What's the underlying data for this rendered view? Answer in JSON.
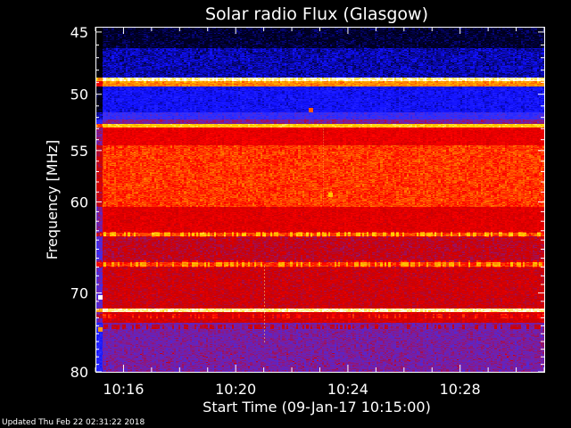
{
  "chart_data": {
    "type": "heatmap",
    "title": "Solar radio Flux (Glasgow)",
    "xlabel": "Start Time (09-Jan-17 10:15:00)",
    "ylabel": "Frequency [MHz]",
    "x_range": [
      "10:15:00",
      "10:31:00"
    ],
    "y_range_MHz": [
      44.6,
      80.0
    ],
    "y_ticks": [
      45,
      50,
      55,
      60,
      70,
      80
    ],
    "y_tick_labels": [
      "45",
      "50",
      "55",
      "60",
      "70",
      "80"
    ],
    "x_tick_labels": [
      "10:16",
      "10:20",
      "10:24",
      "10:28"
    ],
    "x_tick_minutes": [
      16,
      20,
      24,
      28
    ],
    "colormap": [
      "#000000",
      "#00002a",
      "#1010ff",
      "#3030ff",
      "#7a1ea0",
      "#cc0000",
      "#ff0000",
      "#ff8a00",
      "#ffd600",
      "#ffffff"
    ],
    "y_scale": "log",
    "flux_bands": [
      {
        "fmin": 44.6,
        "fmax": 46.2,
        "level": 0.11
      },
      {
        "fmin": 46.2,
        "fmax": 48.6,
        "level": 0.18
      },
      {
        "fmin": 48.6,
        "fmax": 48.9,
        "level": 0.95
      },
      {
        "fmin": 48.9,
        "fmax": 49.3,
        "level": 0.78
      },
      {
        "fmin": 49.3,
        "fmax": 51.5,
        "level": 0.23
      },
      {
        "fmin": 51.5,
        "fmax": 52.2,
        "level": 0.34
      },
      {
        "fmin": 52.2,
        "fmax": 52.6,
        "level": 0.45
      },
      {
        "fmin": 52.6,
        "fmax": 52.9,
        "level": 0.88
      },
      {
        "fmin": 52.9,
        "fmax": 54.5,
        "level": 0.62
      },
      {
        "fmin": 54.5,
        "fmax": 60.5,
        "level": 0.71
      },
      {
        "fmin": 60.5,
        "fmax": 63.2,
        "level": 0.6
      },
      {
        "fmin": 63.2,
        "fmax": 63.6,
        "level": 0.72
      },
      {
        "fmin": 63.6,
        "fmax": 66.5,
        "level": 0.54
      },
      {
        "fmin": 66.5,
        "fmax": 67.0,
        "level": 0.7
      },
      {
        "fmin": 67.0,
        "fmax": 71.9,
        "level": 0.56
      },
      {
        "fmin": 71.9,
        "fmax": 72.3,
        "level": 0.94
      },
      {
        "fmin": 72.3,
        "fmax": 73.7,
        "level": 0.58
      },
      {
        "fmin": 73.7,
        "fmax": 80.0,
        "level": 0.44
      }
    ],
    "hot_pixels": [
      {
        "time_min": 22.6,
        "freq": 51.2,
        "level": 0.74
      },
      {
        "time_min": 23.3,
        "freq": 59.1,
        "level": 0.86
      },
      {
        "time_min": 15.1,
        "freq": 70.3,
        "level": 1.0
      },
      {
        "time_min": 15.1,
        "freq": 74.2,
        "level": 0.8
      }
    ]
  },
  "footer": "Updated Thu Feb 22 02:31:22 2018"
}
